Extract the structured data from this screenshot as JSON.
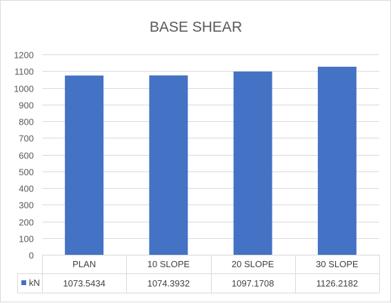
{
  "chart_data": {
    "type": "bar",
    "title": "BASE SHEAR",
    "categories": [
      "PLAN",
      "10 SLOPE",
      "20 SLOPE",
      "30 SLOPE"
    ],
    "series": [
      {
        "name": "kN",
        "color": "#4472c4",
        "values": [
          1073.5434,
          1074.3932,
          1097.1708,
          1126.2182
        ],
        "value_labels": [
          "1073.5434",
          "1074.3932",
          "1097.1708",
          "1126.2182"
        ]
      }
    ],
    "ylim": [
      0,
      1200
    ],
    "yticks": [
      0,
      100,
      200,
      300,
      400,
      500,
      600,
      700,
      800,
      900,
      1000,
      1100,
      1200
    ],
    "grid": true,
    "legend": "data-table",
    "data_table": true
  }
}
